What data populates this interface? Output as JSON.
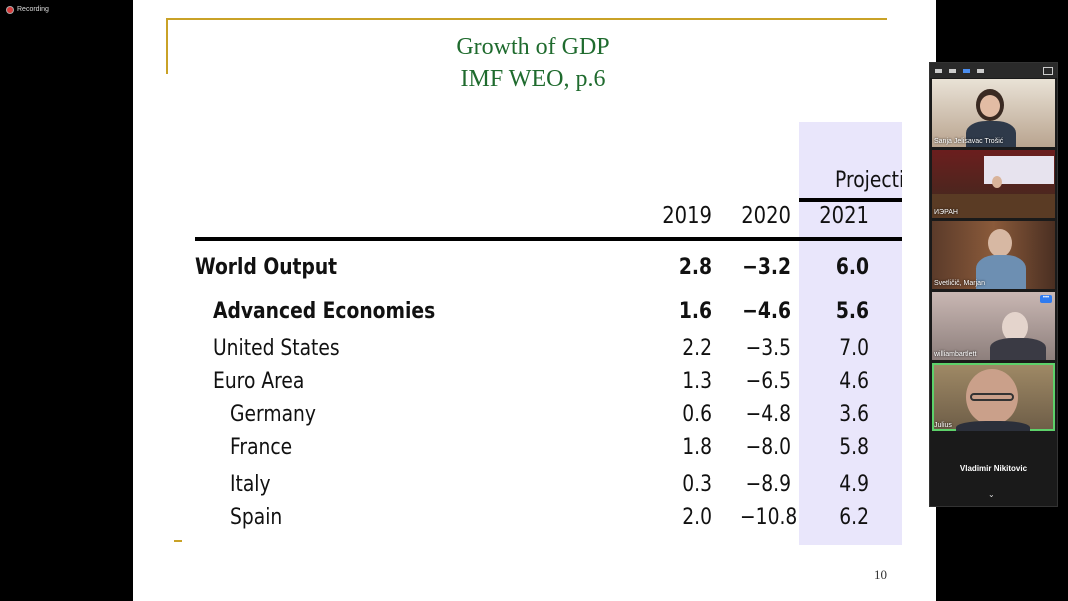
{
  "recording": {
    "label": "Recording"
  },
  "slide": {
    "title_line1": "Growth of GDP",
    "title_line2": "IMF WEO, p.6",
    "projections_label": "Projectio",
    "years": [
      "2019",
      "2020",
      "2021"
    ],
    "rows": [
      {
        "label": "World Output",
        "v": [
          "2.8",
          "−3.2",
          "6.0"
        ],
        "bold": true
      },
      {
        "label": "Advanced Economies",
        "v": [
          "1.6",
          "−4.6",
          "5.6"
        ],
        "bold": true
      },
      {
        "label": "United States",
        "v": [
          "2.2",
          "−3.5",
          "7.0"
        ]
      },
      {
        "label": "Euro Area",
        "v": [
          "1.3",
          "−6.5",
          "4.6"
        ]
      },
      {
        "label": "Germany",
        "v": [
          "0.6",
          "−4.8",
          "3.6"
        ]
      },
      {
        "label": "France",
        "v": [
          "1.8",
          "−8.0",
          "5.8"
        ]
      },
      {
        "label": "Italy",
        "v": [
          "0.3",
          "−8.9",
          "4.9"
        ]
      },
      {
        "label": "Spain",
        "v": [
          "2.0",
          "−10.8",
          "6.2"
        ]
      }
    ],
    "page_number": "10",
    "colors": {
      "title": "#1f6b2e",
      "accent_line": "#c9a227",
      "projection_band": "#e9e6fb"
    }
  },
  "participants": {
    "tiles": [
      {
        "name": "Sanja Jelisavac Trošić"
      },
      {
        "name": "ИЭРАН"
      },
      {
        "name": "Svetličič, Marjan"
      },
      {
        "name": "williambartlett"
      },
      {
        "name": "Julius"
      }
    ],
    "featured_name": "Vladimir Nikitovic",
    "speaker_color": "#5dd16a"
  }
}
